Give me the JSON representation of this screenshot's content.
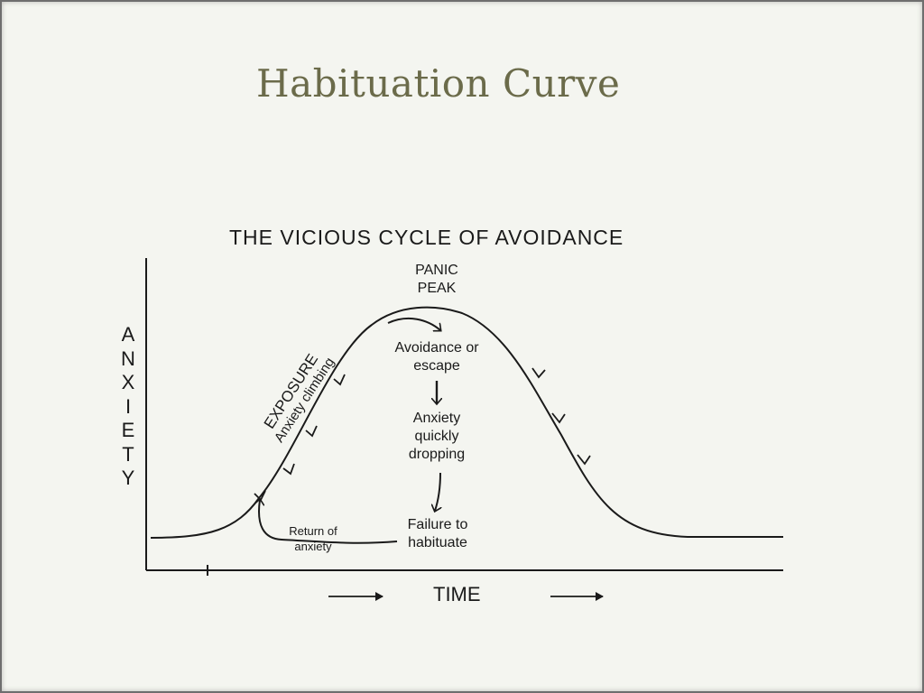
{
  "slide": {
    "title": "Habituation Curve"
  },
  "figure": {
    "title": "THE VICIOUS CYCLE OF AVOIDANCE",
    "y_axis_letters": [
      "A",
      "N",
      "X",
      "I",
      "E",
      "T",
      "Y"
    ],
    "x_axis_label": "TIME",
    "labels": {
      "panic_peak": [
        "PANIC",
        "PEAK"
      ],
      "exposure": "EXPOSURE",
      "anxiety_climbing": "Anxiety climbing",
      "avoidance": [
        "Avoidance or",
        "escape"
      ],
      "dropping": [
        "Anxiety",
        "quickly",
        "dropping"
      ],
      "failure": [
        "Failure to",
        "habituate"
      ],
      "return": [
        "Return of",
        "anxiety"
      ]
    },
    "line_color": "#1a1a1a"
  }
}
